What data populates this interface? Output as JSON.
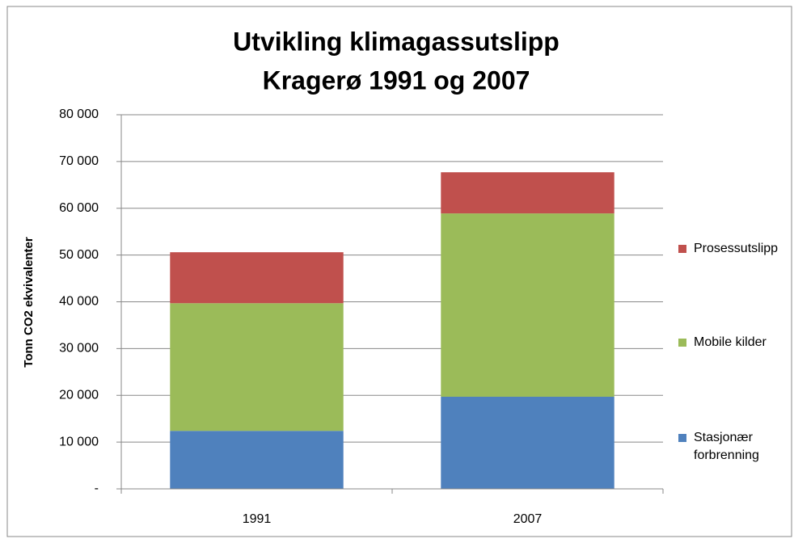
{
  "chart_data": {
    "type": "stacked_bar",
    "title": [
      "Utvikling klimagassutslipp",
      "Kragerø 1991 og 2007"
    ],
    "y_label": "Tonn CO2 ekvivalenter",
    "categories": [
      "1991",
      "2007"
    ],
    "series": [
      {
        "name": "Stasjonær forbrenning",
        "color": "#4f81bd",
        "values": [
          12400,
          19700
        ]
      },
      {
        "name": "Mobile kilder",
        "color": "#9bbb59",
        "values": [
          27300,
          39200
        ]
      },
      {
        "name": "Prosessutslipp",
        "color": "#c0504d",
        "values": [
          10900,
          8800
        ]
      }
    ],
    "ylim": [
      0,
      80000
    ],
    "yticks": [
      {
        "value": 0,
        "label": "-"
      },
      {
        "value": 10000,
        "label": "10 000"
      },
      {
        "value": 20000,
        "label": "20 000"
      },
      {
        "value": 30000,
        "label": "30 000"
      },
      {
        "value": 40000,
        "label": "40 000"
      },
      {
        "value": 50000,
        "label": "50 000"
      },
      {
        "value": 60000,
        "label": "60 000"
      },
      {
        "value": 70000,
        "label": "70 000"
      },
      {
        "value": 80000,
        "label": "80 000"
      }
    ],
    "grid": true,
    "legend": "right"
  }
}
